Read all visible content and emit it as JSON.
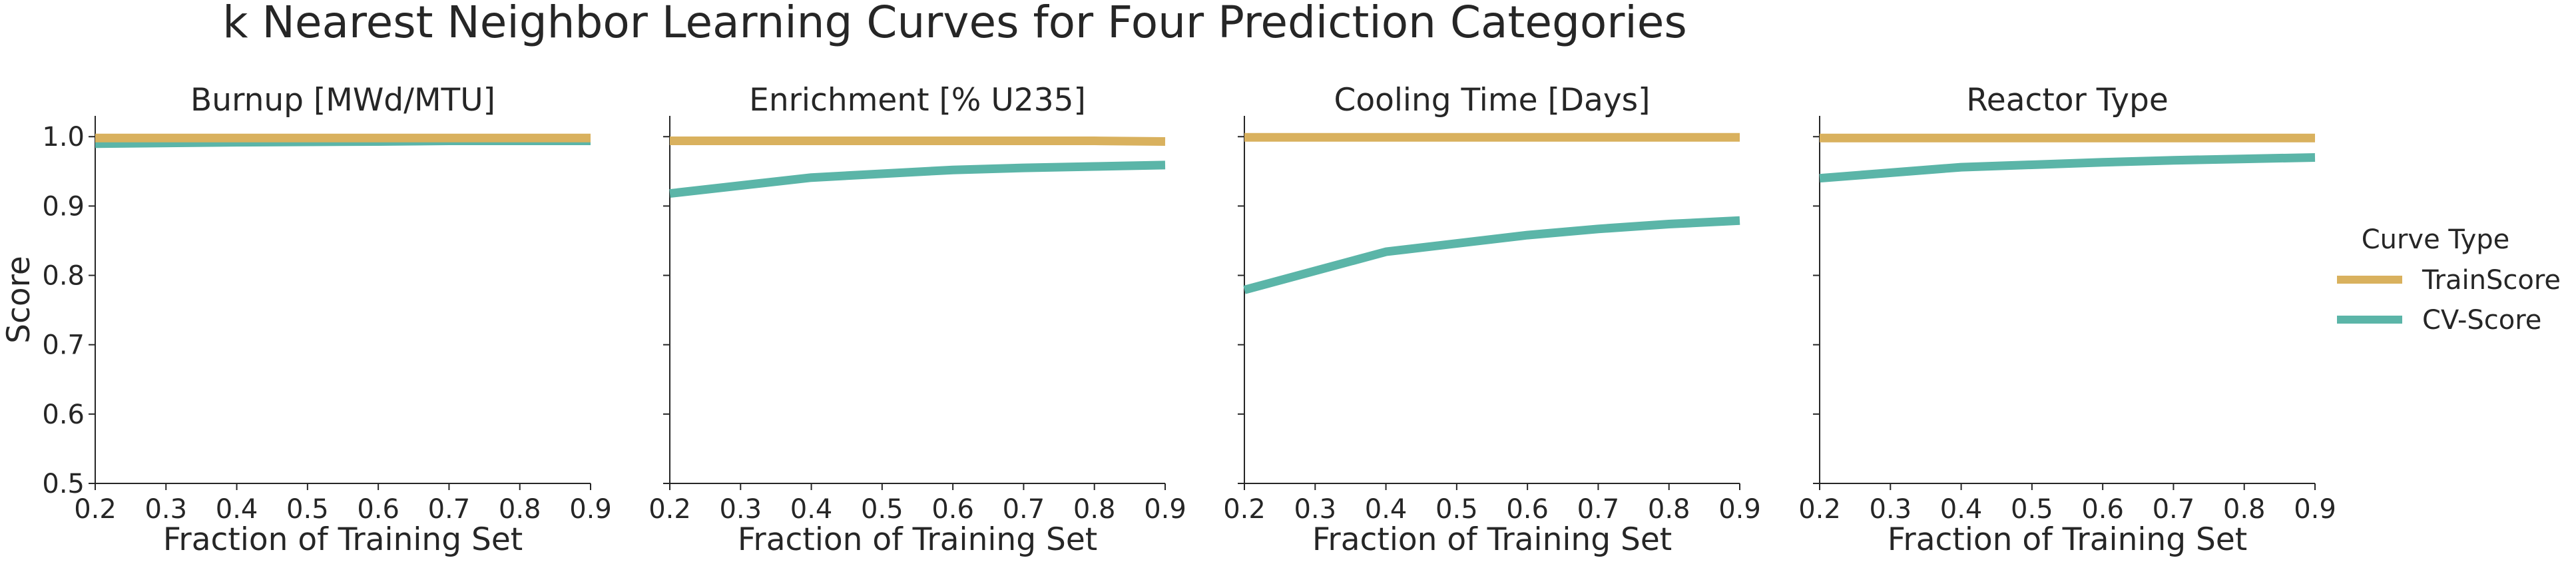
{
  "title": "k Nearest Neighbor Learning Curves for Four Prediction Categories",
  "legend": {
    "title": "Curve Type",
    "placement": "right",
    "items": [
      {
        "label": "TrainScore",
        "color": "#d9b15e"
      },
      {
        "label": "CV-Score",
        "color": "#5bb5a8"
      }
    ]
  },
  "chart_data": [
    {
      "type": "line",
      "title": "Burnup [MWd/MTU]",
      "xlabel": "Fraction of Training Set",
      "ylabel": "Score",
      "xlim": [
        0.2,
        0.9
      ],
      "ylim": [
        0.5,
        1.03
      ],
      "xticks": [
        "0.2",
        "0.3",
        "0.4",
        "0.5",
        "0.6",
        "0.7",
        "0.8",
        "0.9"
      ],
      "yticks": [
        "0.5",
        "0.6",
        "0.7",
        "0.8",
        "0.9",
        "1.0"
      ],
      "grid": false,
      "x": [
        0.2,
        0.4,
        0.6,
        0.7,
        0.8,
        0.9
      ],
      "series": [
        {
          "name": "TrainScore",
          "values": [
            0.998,
            0.998,
            0.998,
            0.998,
            0.998,
            0.998
          ]
        },
        {
          "name": "CV-Score",
          "values": [
            0.99,
            0.992,
            0.993,
            0.994,
            0.994,
            0.994
          ]
        }
      ]
    },
    {
      "type": "line",
      "title": "Enrichment [% U235]",
      "xlabel": "Fraction of Training Set",
      "ylabel": "",
      "xlim": [
        0.2,
        0.9
      ],
      "ylim": [
        0.5,
        1.03
      ],
      "xticks": [
        "0.2",
        "0.3",
        "0.4",
        "0.5",
        "0.6",
        "0.7",
        "0.8",
        "0.9"
      ],
      "yticks": [],
      "grid": false,
      "x": [
        0.2,
        0.4,
        0.6,
        0.7,
        0.8,
        0.9
      ],
      "series": [
        {
          "name": "TrainScore",
          "values": [
            0.994,
            0.994,
            0.994,
            0.994,
            0.994,
            0.993
          ]
        },
        {
          "name": "CV-Score",
          "values": [
            0.918,
            0.941,
            0.952,
            0.955,
            0.957,
            0.959
          ]
        }
      ]
    },
    {
      "type": "line",
      "title": "Cooling Time [Days]",
      "xlabel": "Fraction of Training Set",
      "ylabel": "",
      "xlim": [
        0.2,
        0.9
      ],
      "ylim": [
        0.5,
        1.03
      ],
      "xticks": [
        "0.2",
        "0.3",
        "0.4",
        "0.5",
        "0.6",
        "0.7",
        "0.8",
        "0.9"
      ],
      "yticks": [],
      "grid": false,
      "x": [
        0.2,
        0.4,
        0.6,
        0.7,
        0.8,
        0.9
      ],
      "series": [
        {
          "name": "TrainScore",
          "values": [
            0.999,
            0.999,
            0.999,
            0.999,
            0.999,
            0.999
          ]
        },
        {
          "name": "CV-Score",
          "values": [
            0.779,
            0.834,
            0.858,
            0.867,
            0.874,
            0.879
          ]
        }
      ]
    },
    {
      "type": "line",
      "title": "Reactor Type",
      "xlabel": "Fraction of Training Set",
      "ylabel": "",
      "xlim": [
        0.2,
        0.9
      ],
      "ylim": [
        0.5,
        1.03
      ],
      "xticks": [
        "0.2",
        "0.3",
        "0.4",
        "0.5",
        "0.6",
        "0.7",
        "0.8",
        "0.9"
      ],
      "yticks": [],
      "grid": false,
      "x": [
        0.2,
        0.4,
        0.6,
        0.7,
        0.8,
        0.9
      ],
      "series": [
        {
          "name": "TrainScore",
          "values": [
            0.998,
            0.998,
            0.998,
            0.998,
            0.998,
            0.998
          ]
        },
        {
          "name": "CV-Score",
          "values": [
            0.94,
            0.956,
            0.963,
            0.966,
            0.968,
            0.97
          ]
        }
      ]
    }
  ]
}
